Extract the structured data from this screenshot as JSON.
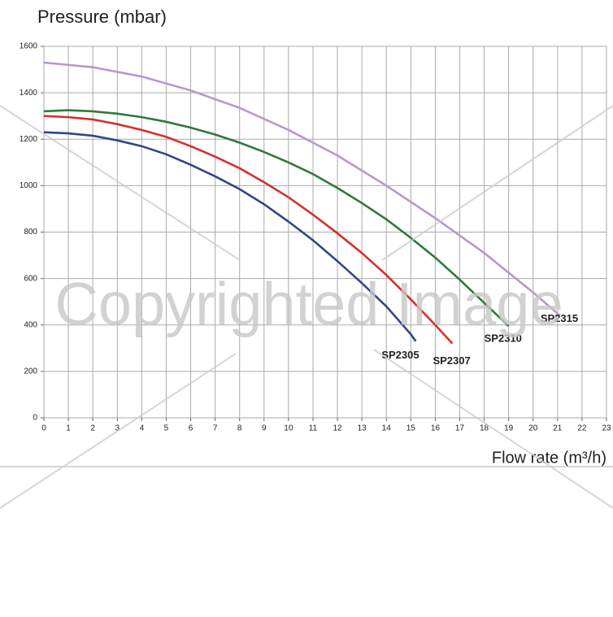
{
  "chart_data": {
    "type": "line",
    "title": "Pressure (mbar)",
    "x_label": "Flow rate (m³/h)",
    "watermark": "Copyrighted Image",
    "xlim": [
      0,
      23
    ],
    "xticks": [
      0,
      1,
      2,
      3,
      4,
      5,
      6,
      7,
      8,
      9,
      10,
      11,
      12,
      13,
      14,
      15,
      16,
      17,
      18,
      19,
      20,
      21,
      22,
      23
    ],
    "ylim": [
      0,
      1600
    ],
    "yticks": [
      0,
      200,
      400,
      600,
      800,
      1000,
      1200,
      1400,
      1600
    ],
    "grid": true,
    "series": [
      {
        "name": "SP2305",
        "color": "#33458a",
        "x": [
          0,
          1,
          2,
          3,
          4,
          5,
          6,
          7,
          8,
          9,
          10,
          11,
          12,
          13,
          14,
          15,
          15.2
        ],
        "values": [
          1230,
          1225,
          1215,
          1195,
          1170,
          1135,
          1090,
          1040,
          985,
          920,
          845,
          765,
          675,
          580,
          480,
          360,
          330
        ]
      },
      {
        "name": "SP2307",
        "color": "#d2322d",
        "x": [
          0,
          1,
          2,
          3,
          4,
          5,
          6,
          7,
          8,
          9,
          10,
          11,
          12,
          13,
          14,
          15,
          16,
          16.7
        ],
        "values": [
          1300,
          1295,
          1285,
          1265,
          1240,
          1210,
          1170,
          1125,
          1075,
          1015,
          950,
          875,
          795,
          710,
          615,
          510,
          400,
          320
        ]
      },
      {
        "name": "SP2310",
        "color": "#2e7a3c",
        "x": [
          0,
          1,
          2,
          3,
          4,
          5,
          6,
          7,
          8,
          9,
          10,
          11,
          12,
          13,
          14,
          15,
          16,
          17,
          18,
          19
        ],
        "values": [
          1320,
          1325,
          1320,
          1310,
          1295,
          1275,
          1250,
          1220,
          1185,
          1145,
          1100,
          1050,
          990,
          925,
          855,
          775,
          690,
          595,
          495,
          395
        ]
      },
      {
        "name": "SP2315",
        "color": "#b898cc",
        "x": [
          0,
          2,
          4,
          6,
          8,
          10,
          12,
          14,
          16,
          18,
          20,
          21.1
        ],
        "values": [
          1530,
          1510,
          1470,
          1410,
          1335,
          1240,
          1130,
          1000,
          860,
          710,
          540,
          440
        ]
      }
    ]
  }
}
